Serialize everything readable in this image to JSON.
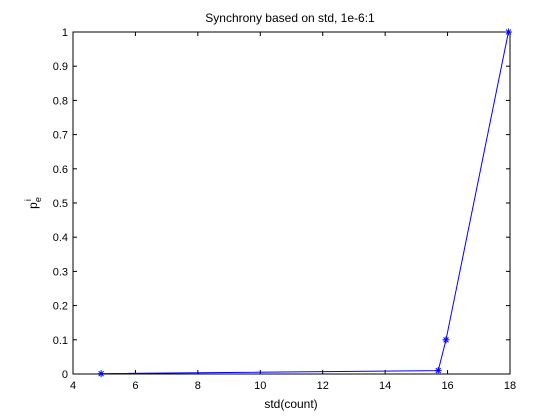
{
  "chart_data": {
    "type": "line",
    "title": "Synchrony based on std, 1e-6:1",
    "xlabel": "std(count)",
    "ylabel": {
      "base": "p",
      "sub": "e",
      "sup": "i"
    },
    "xlim": [
      4,
      18
    ],
    "ylim": [
      0,
      1
    ],
    "xticks": [
      "4",
      "6",
      "8",
      "10",
      "12",
      "14",
      "16",
      "18"
    ],
    "xtick_values": [
      4,
      6,
      8,
      10,
      12,
      14,
      16,
      18
    ],
    "yticks": [
      "0",
      "0.1",
      "0.2",
      "0.3",
      "0.4",
      "0.5",
      "0.6",
      "0.7",
      "0.8",
      "0.9",
      "1"
    ],
    "ytick_values": [
      0,
      0.1,
      0.2,
      0.3,
      0.4,
      0.5,
      0.6,
      0.7,
      0.8,
      0.9,
      1
    ],
    "grid": false,
    "series": [
      {
        "color": "#0000ff",
        "marker": "asterisk",
        "points": [
          {
            "x": 4.9,
            "y": 0.001
          },
          {
            "x": 15.7,
            "y": 0.01
          },
          {
            "x": 15.95,
            "y": 0.1
          },
          {
            "x": 17.95,
            "y": 1.0
          }
        ]
      }
    ]
  }
}
